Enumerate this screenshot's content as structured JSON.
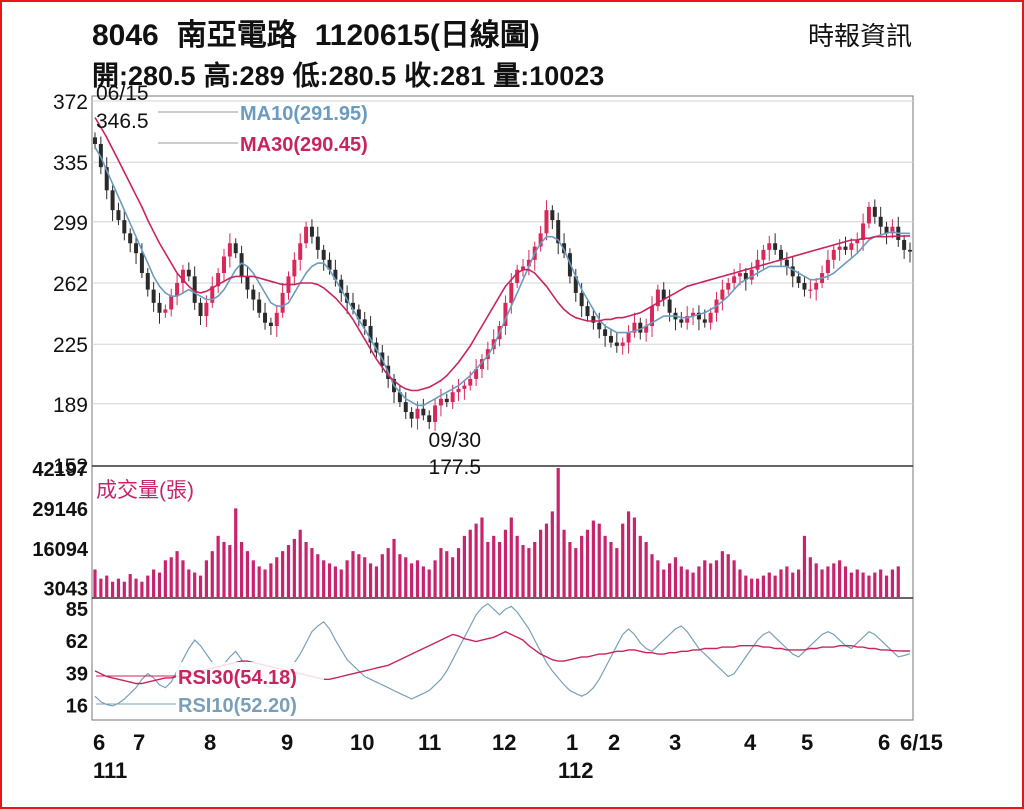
{
  "header": {
    "code": "8046",
    "name": "南亞電路",
    "title_suffix": "1120615(日線圖)",
    "source": "時報資訊",
    "ohlc": [
      "開:280.5",
      "高:289",
      "低:280.5",
      "收:281",
      "量:10023"
    ]
  },
  "colors": {
    "frame": "#e8161c",
    "up": "#d8285a",
    "down": "#2a2a2a",
    "ma10": "#6b9bbf",
    "ma30": "#c8245e",
    "volume": "#c8246e",
    "rsi30": "#c8245e",
    "rsi10": "#7aa0b8",
    "grid": "#d4d4d4"
  },
  "chart_data": [
    {
      "type": "candlestick",
      "name": "price",
      "ylim": [
        152,
        375
      ],
      "yticks": [
        372,
        335,
        299,
        262,
        225,
        189,
        152
      ],
      "legend": [
        {
          "label": "MA10(291.95)",
          "color": "#6b9bbf"
        },
        {
          "label": "MA30(290.45)",
          "color": "#c8245e"
        }
      ],
      "annotations": [
        {
          "date": "06/15",
          "value": "346.5",
          "x_index": 0
        },
        {
          "date": "09/30",
          "value": "177.5",
          "x_index": 62
        }
      ],
      "closes": [
        346,
        332,
        318,
        306,
        300,
        292,
        286,
        280,
        268,
        258,
        250,
        244,
        246,
        254,
        262,
        270,
        266,
        250,
        242,
        250,
        260,
        268,
        278,
        286,
        280,
        266,
        258,
        252,
        244,
        238,
        236,
        244,
        256,
        266,
        276,
        286,
        296,
        290,
        282,
        276,
        270,
        264,
        256,
        250,
        246,
        240,
        236,
        226,
        220,
        212,
        204,
        196,
        190,
        184,
        180,
        186,
        182,
        178,
        188,
        192,
        190,
        196,
        198,
        200,
        204,
        210,
        216,
        222,
        228,
        236,
        250,
        262,
        270,
        272,
        276,
        284,
        292,
        306,
        300,
        286,
        280,
        266,
        256,
        248,
        242,
        238,
        234,
        230,
        226,
        224,
        226,
        232,
        238,
        232,
        236,
        248,
        258,
        252,
        244,
        240,
        238,
        242,
        244,
        240,
        238,
        244,
        252,
        258,
        262,
        266,
        268,
        264,
        270,
        276,
        282,
        286,
        282,
        276,
        272,
        266,
        262,
        258,
        258,
        262,
        268,
        276,
        282,
        284,
        282,
        286,
        288,
        298,
        308,
        302,
        296,
        292,
        296,
        288,
        282,
        281
      ],
      "ma10": [
        344,
        338,
        330,
        322,
        314,
        306,
        298,
        290,
        282,
        274,
        266,
        260,
        256,
        254,
        254,
        256,
        258,
        256,
        254,
        252,
        252,
        254,
        258,
        264,
        270,
        274,
        272,
        268,
        262,
        256,
        250,
        248,
        248,
        250,
        256,
        262,
        268,
        272,
        274,
        274,
        270,
        264,
        258,
        252,
        246,
        240,
        234,
        228,
        222,
        216,
        208,
        200,
        196,
        192,
        190,
        188,
        188,
        190,
        192,
        194,
        196,
        198,
        200,
        203,
        206,
        210,
        214,
        218,
        224,
        232,
        240,
        248,
        256,
        264,
        272,
        280,
        286,
        290,
        290,
        288,
        282,
        274,
        266,
        258,
        252,
        246,
        240,
        236,
        234,
        232,
        232,
        232,
        233,
        234,
        236,
        238,
        240,
        242,
        242,
        242,
        241,
        241,
        242,
        243,
        244,
        246,
        248,
        251,
        254,
        258,
        262,
        264,
        266,
        268,
        270,
        272,
        272,
        272,
        272,
        270,
        268,
        266,
        264,
        264,
        265,
        266,
        268,
        271,
        274,
        277,
        280,
        284,
        288,
        290,
        291,
        292,
        293,
        292,
        292,
        291.95
      ],
      "ma30": [
        362,
        356,
        350,
        343,
        336,
        329,
        322,
        315,
        308,
        300,
        293,
        286,
        280,
        274,
        268,
        264,
        260,
        257,
        256,
        257,
        259,
        261,
        263,
        265,
        266,
        266,
        266,
        266,
        265,
        264,
        263,
        262,
        261,
        261,
        261,
        262,
        262,
        262,
        261,
        259,
        256,
        253,
        249,
        245,
        240,
        234,
        228,
        222,
        216,
        211,
        206,
        203,
        200,
        198,
        197,
        197,
        198,
        199,
        201,
        203,
        206,
        210,
        214,
        219,
        224,
        230,
        236,
        242,
        248,
        254,
        260,
        264,
        268,
        270,
        270,
        268,
        264,
        260,
        255,
        250,
        246,
        243,
        241,
        240,
        239,
        239,
        239,
        240,
        240,
        241,
        241,
        242,
        243,
        244,
        246,
        248,
        250,
        252,
        254,
        256,
        258,
        260,
        261,
        262,
        263,
        264,
        265,
        266,
        267,
        268,
        269,
        270,
        271,
        272,
        273,
        274,
        275,
        276,
        277,
        278,
        279,
        280,
        281,
        282,
        283,
        284,
        285,
        286,
        287,
        288,
        288,
        289,
        289,
        290,
        290,
        290,
        290.2,
        290.3,
        290.4,
        290.45
      ]
    },
    {
      "type": "bar",
      "name": "volume",
      "title": "成交量(張)",
      "yticks": [
        42197,
        29146,
        16094,
        3043
      ],
      "ylim": [
        0,
        42197
      ],
      "values": [
        9000,
        6000,
        7000,
        5000,
        6000,
        5000,
        7500,
        6000,
        5000,
        7000,
        9000,
        8000,
        12000,
        13000,
        15000,
        12000,
        9000,
        8000,
        7000,
        12000,
        15000,
        20000,
        18000,
        17000,
        29000,
        18000,
        15000,
        12000,
        10000,
        9000,
        11000,
        13000,
        15000,
        17000,
        19000,
        22000,
        18000,
        16000,
        14000,
        12000,
        11000,
        10000,
        9000,
        12000,
        15000,
        14000,
        13000,
        11000,
        10000,
        14000,
        16000,
        19000,
        14000,
        13000,
        11000,
        12000,
        10000,
        9000,
        12000,
        16000,
        15000,
        13000,
        16000,
        20000,
        22000,
        24000,
        26000,
        18000,
        20000,
        18000,
        22000,
        26000,
        20000,
        17000,
        16000,
        18000,
        22000,
        24000,
        28000,
        42197,
        22000,
        18000,
        16000,
        20000,
        22000,
        25000,
        24000,
        20000,
        18000,
        16000,
        24000,
        28000,
        26000,
        20000,
        18000,
        14000,
        12000,
        9000,
        11000,
        13000,
        10000,
        9000,
        8000,
        10000,
        12000,
        11000,
        12000,
        15000,
        14000,
        12000,
        9000,
        7000,
        6000,
        6000,
        7000,
        8000,
        7000,
        9000,
        10000,
        8000,
        9000,
        20000,
        13000,
        11000,
        9000,
        10000,
        11000,
        12000,
        10000,
        8000,
        9000,
        8000,
        7000,
        8000,
        9000,
        7000,
        9000,
        10023
      ]
    },
    {
      "type": "line",
      "name": "rsi",
      "yticks": [
        85,
        62,
        39,
        16
      ],
      "ylim": [
        5,
        92
      ],
      "series": [
        {
          "name": "RSI30(54.18)",
          "color": "#c8245e"
        },
        {
          "name": "RSI10(52.20)",
          "color": "#7aa0b8"
        }
      ],
      "rsi30": [
        40,
        38,
        36,
        35,
        34,
        33,
        32,
        31,
        31,
        32,
        33,
        34,
        35,
        35,
        36,
        37,
        38,
        39,
        40,
        41,
        42,
        43,
        44,
        45,
        46,
        47,
        47,
        46,
        45,
        44,
        43,
        42,
        41,
        40,
        39,
        38,
        37,
        36,
        35,
        34,
        34,
        35,
        36,
        37,
        38,
        39,
        40,
        41,
        42,
        43,
        44,
        46,
        48,
        50,
        52,
        54,
        56,
        58,
        60,
        62,
        64,
        66,
        65,
        63,
        62,
        61,
        62,
        63,
        64,
        66,
        68,
        66,
        64,
        62,
        58,
        55,
        52,
        50,
        48,
        47,
        47,
        48,
        49,
        50,
        50,
        51,
        52,
        52,
        53,
        54,
        54,
        55,
        55,
        54,
        53,
        53,
        52,
        52,
        53,
        53,
        54,
        54,
        55,
        55,
        56,
        56,
        56,
        57,
        57,
        57,
        58,
        58,
        58,
        58,
        57,
        57,
        56,
        56,
        55,
        55,
        55,
        55,
        56,
        56,
        57,
        57,
        57,
        58,
        58,
        58,
        57,
        57,
        56,
        56,
        55,
        55,
        54.5,
        54.3,
        54.2,
        54.18
      ],
      "rsi10": [
        22,
        18,
        16,
        15,
        17,
        20,
        24,
        28,
        34,
        38,
        35,
        30,
        28,
        32,
        40,
        48,
        56,
        62,
        58,
        52,
        46,
        42,
        45,
        50,
        54,
        48,
        42,
        38,
        34,
        30,
        28,
        30,
        34,
        40,
        46,
        52,
        60,
        68,
        72,
        75,
        70,
        62,
        55,
        48,
        44,
        40,
        36,
        34,
        32,
        30,
        28,
        26,
        24,
        22,
        20,
        22,
        24,
        26,
        30,
        34,
        40,
        48,
        56,
        64,
        72,
        80,
        85,
        88,
        84,
        80,
        84,
        86,
        82,
        76,
        70,
        62,
        54,
        46,
        40,
        35,
        30,
        26,
        24,
        22,
        24,
        28,
        34,
        42,
        50,
        58,
        66,
        70,
        66,
        60,
        56,
        54,
        58,
        62,
        66,
        70,
        72,
        68,
        62,
        56,
        52,
        48,
        44,
        40,
        36,
        38,
        44,
        50,
        56,
        62,
        66,
        68,
        64,
        60,
        56,
        52,
        50,
        54,
        58,
        62,
        66,
        68,
        66,
        62,
        58,
        56,
        60,
        64,
        68,
        66,
        62,
        58,
        54,
        50,
        51,
        52.2
      ]
    }
  ],
  "x_axis": {
    "months": [
      "6",
      "7",
      "8",
      "9",
      "10",
      "11",
      "12",
      "1",
      "2",
      "3",
      "4",
      "5",
      "6",
      "6/15"
    ],
    "years": [
      "111",
      "112"
    ]
  }
}
